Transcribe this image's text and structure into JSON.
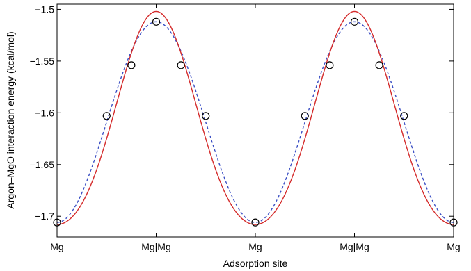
{
  "chart_data": {
    "type": "line",
    "xlabel": "Adsorption site",
    "ylabel": "Argon–MgO interaction energy (kcal/mol)",
    "xlim": [
      0,
      4
    ],
    "ylim": [
      -1.72,
      -1.495
    ],
    "grid": false,
    "x_ticks": [
      {
        "value": 0,
        "label": "Mg"
      },
      {
        "value": 1,
        "label": "Mg|Mg"
      },
      {
        "value": 2,
        "label": "Mg"
      },
      {
        "value": 3,
        "label": "Mg|Mg"
      },
      {
        "value": 4,
        "label": "Mg"
      }
    ],
    "y_ticks": [
      {
        "value": -1.5,
        "label": "−1.5"
      },
      {
        "value": -1.55,
        "label": "−1.55"
      },
      {
        "value": -1.6,
        "label": "−1.6"
      },
      {
        "value": -1.65,
        "label": "−1.65"
      },
      {
        "value": -1.7,
        "label": "−1.7"
      }
    ],
    "series": [
      {
        "style": "markers",
        "marker": "open-circle",
        "color": "#000000",
        "x": [
          0,
          0.5,
          0.75,
          1,
          1.25,
          1.5,
          2,
          2.5,
          2.75,
          3,
          3.25,
          3.5,
          4
        ],
        "y": [
          -1.706,
          -1.603,
          -1.554,
          -1.512,
          -1.554,
          -1.603,
          -1.706,
          -1.603,
          -1.554,
          -1.512,
          -1.554,
          -1.603,
          -1.706
        ]
      },
      {
        "style": "dashed",
        "color": "#3b4fc4",
        "function": "cosine",
        "mean": -1.609,
        "amplitude": 0.097,
        "period": 2,
        "min": -1.706,
        "max": -1.512
      },
      {
        "style": "solid",
        "color": "#d42a2a",
        "function": "cosine-sharpened",
        "mean": -1.615,
        "amplitude": 0.103,
        "harmonic": 0.01,
        "period": 2,
        "min": -1.718,
        "max": -1.512
      }
    ]
  }
}
